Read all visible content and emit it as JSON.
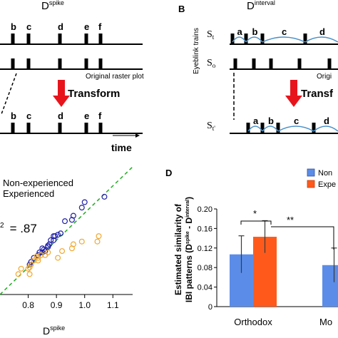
{
  "panelA": {
    "title_main": "D",
    "title_sup": "spike",
    "spike_letters": [
      "b",
      "c",
      "d",
      "e",
      "f"
    ],
    "raster_label": "Original raster plot",
    "arrow_label": "Transform",
    "time_label": "time"
  },
  "panelB": {
    "letter": "B",
    "title_main": "D",
    "title_sup": "interval",
    "ylabel": "Eyeblink trains",
    "row_top_main": "S",
    "row_top_sub": "t",
    "row_mid_main": "S",
    "row_mid_sub": "o",
    "row_bot_main": "S",
    "row_bot_sub": "t'",
    "orig_label": "Origi",
    "arrow_label": "Transf",
    "top_letters": [
      "a",
      "b",
      "c",
      "d"
    ],
    "bot_letters": [
      "a",
      "b",
      "c",
      "d"
    ]
  },
  "panelC": {
    "legend_non": "Non-experienced",
    "legend_exp": "Experienced",
    "r2_prefix": "2",
    "r2_text": "= .87",
    "xlabel_main": "D",
    "xlabel_sup": "spike",
    "x_ticks": [
      "0.8",
      "0.9",
      "1.0",
      "1.1"
    ]
  },
  "panelD": {
    "letter": "D",
    "ylabel_line1": "Estimated similarity of",
    "ylabel_line2_a": "IBI patterns (D",
    "ylabel_sup1": "spike",
    "ylabel_mid": " - D",
    "ylabel_sup2": "interval",
    "ylabel_end": ")",
    "legend": [
      "Non",
      "Expe"
    ],
    "sig_single": "*",
    "sig_double": "**"
  },
  "chart_data": [
    {
      "type": "scatter",
      "xlabel": "D spike",
      "x_ticks": [
        0.8,
        0.9,
        1.0,
        1.1
      ],
      "xlim": [
        0.7,
        1.17
      ],
      "ylim": [
        0.7,
        1.17
      ],
      "annotation": "R2 = .87",
      "identity_line": true,
      "series": [
        {
          "name": "Non-experienced",
          "color": "#1f1fa8",
          "x": [
            1.07,
            1.0,
            0.99,
            0.96,
            0.955,
            0.93,
            0.915,
            0.905,
            0.895,
            0.89,
            0.89,
            0.88,
            0.875,
            0.87,
            0.87,
            0.85,
            0.855,
            0.85,
            0.86,
            0.84,
            0.835,
            0.82,
            0.81,
            0.805
          ],
          "y": [
            1.06,
            1.04,
            1.02,
            0.99,
            0.975,
            0.97,
            0.925,
            0.92,
            0.915,
            0.915,
            0.9,
            0.9,
            0.885,
            0.88,
            0.875,
            0.87,
            0.865,
            0.855,
            0.86,
            0.855,
            0.845,
            0.835,
            0.82,
            0.81
          ]
        },
        {
          "name": "Experienced",
          "color": "#f0a830",
          "x": [
            1.05,
            1.045,
            0.99,
            0.96,
            0.955,
            0.92,
            0.905,
            0.87,
            0.86,
            0.845,
            0.835,
            0.83,
            0.835,
            0.82,
            0.81,
            0.805,
            0.8,
            0.805,
            0.775,
            0.765
          ],
          "y": [
            0.915,
            0.895,
            0.895,
            0.885,
            0.87,
            0.86,
            0.835,
            0.855,
            0.845,
            0.845,
            0.835,
            0.84,
            0.825,
            0.825,
            0.81,
            0.8,
            0.795,
            0.775,
            0.795,
            0.775
          ]
        }
      ]
    },
    {
      "type": "bar",
      "categories": [
        "Orthodox",
        "Mo"
      ],
      "ylim": [
        0,
        0.2
      ],
      "y_ticks": [
        "0",
        "0.04",
        "0.08",
        "0.12",
        "0.16",
        "0.20"
      ],
      "series": [
        {
          "name": "Non",
          "color": "#5b8de8",
          "values": [
            0.107,
            0.085
          ],
          "errors": [
            0.038,
            0.035
          ]
        },
        {
          "name": "Expe",
          "color": "#ff5a1c",
          "values": [
            0.143,
            null
          ],
          "errors": [
            0.033,
            null
          ]
        }
      ]
    }
  ]
}
